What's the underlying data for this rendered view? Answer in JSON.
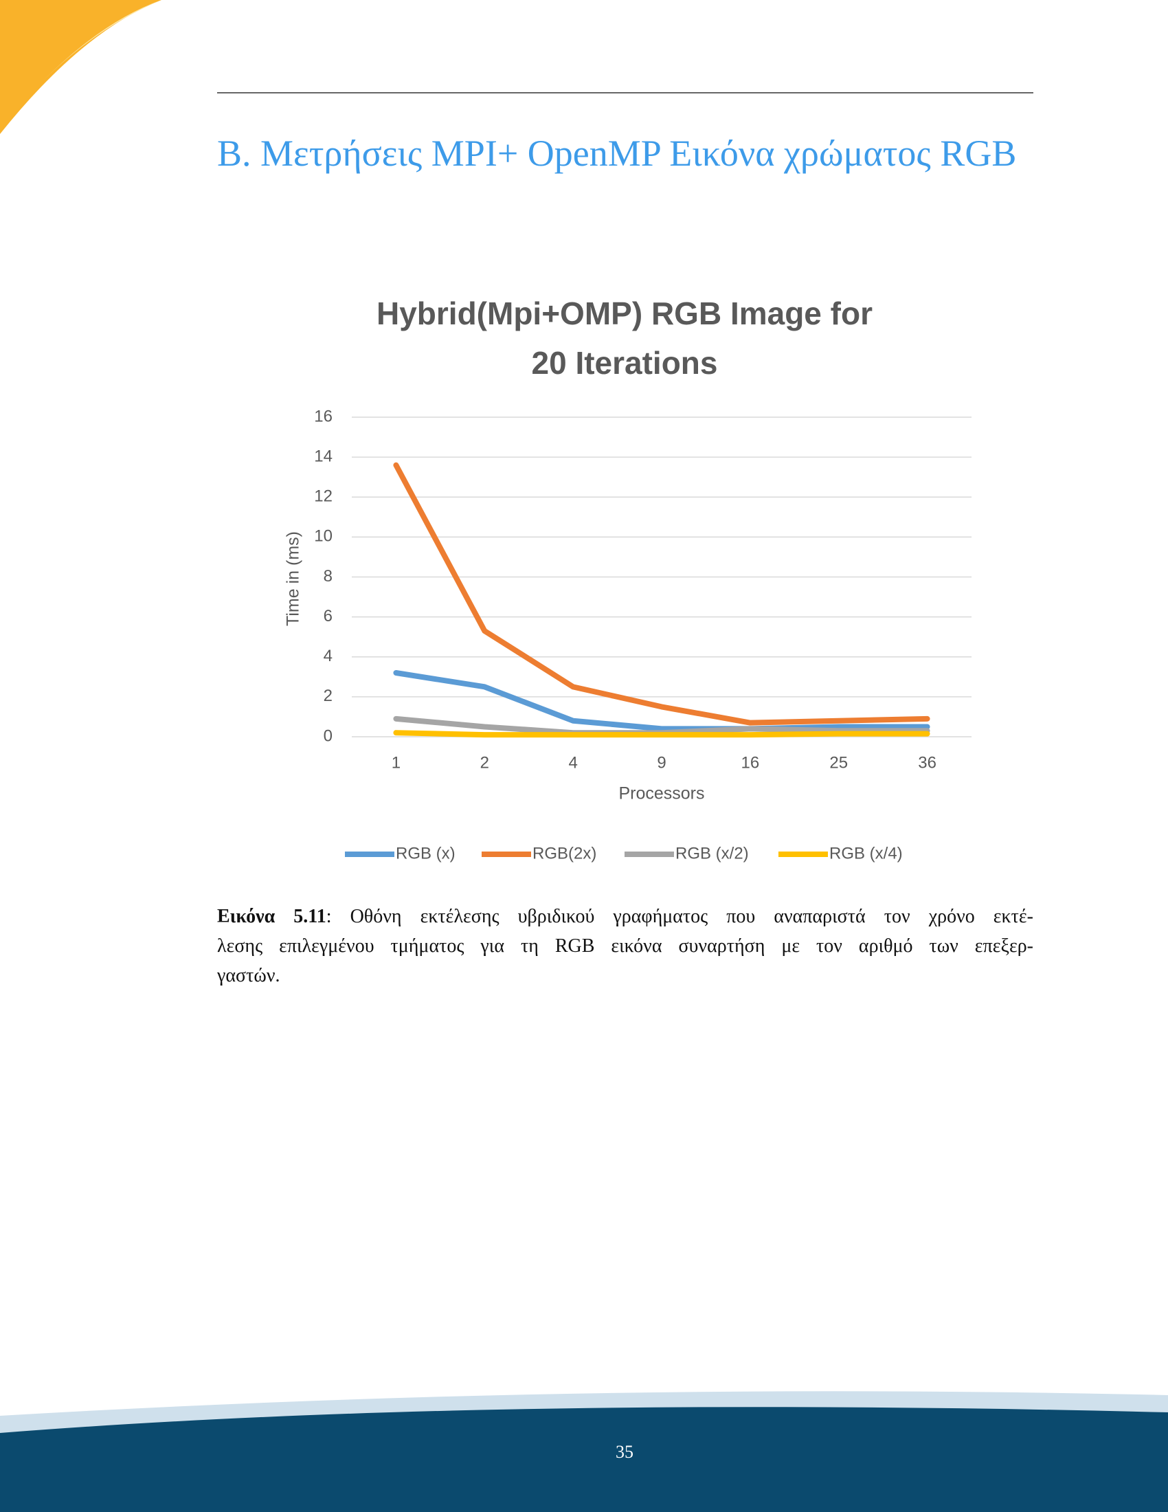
{
  "heading": "Β. Μετρήσεις MPI+ OpenMP Εικόνα χρώματος RGB",
  "chart_data": {
    "type": "line",
    "title": "Hybrid(Mpi+OMP) RGB Image for 20 Iterations",
    "x_label": "Processors",
    "y_label": "Time in (ms)",
    "categories": [
      "1",
      "2",
      "4",
      "9",
      "16",
      "25",
      "36"
    ],
    "series": [
      {
        "name": "RGB (x)",
        "color": "#5b9bd5",
        "values": [
          3.2,
          2.5,
          0.8,
          0.4,
          0.4,
          0.5,
          0.5
        ]
      },
      {
        "name": "RGB(2x)",
        "color": "#ed7d31",
        "values": [
          13.6,
          5.3,
          2.5,
          1.5,
          0.7,
          0.8,
          0.9
        ]
      },
      {
        "name": "RGB (x/2)",
        "color": "#a5a5a5",
        "values": [
          0.9,
          0.5,
          0.2,
          0.2,
          0.4,
          0.3,
          0.3
        ]
      },
      {
        "name": "RGB (x/4)",
        "color": "#ffc000",
        "values": [
          0.2,
          0.1,
          0.1,
          0.1,
          0.1,
          0.15,
          0.15
        ]
      }
    ],
    "ylim": [
      0,
      16
    ],
    "yticks": [
      0,
      2,
      4,
      6,
      8,
      10,
      12,
      14,
      16
    ],
    "grid": true,
    "legend": "bottom"
  },
  "caption": {
    "label": "Εικόνα 5.11",
    "lines": [
      ": Οθόνη εκτέλεσης υβριδικού γραφήματος που αναπαριστά τον χρόνο εκτέ-",
      "λεσης επιλεγμένου τμήματος για τη RGB εικόνα συναρτήση με τον αριθμό των επεξερ-",
      "γαστών."
    ]
  },
  "page_number": "35"
}
